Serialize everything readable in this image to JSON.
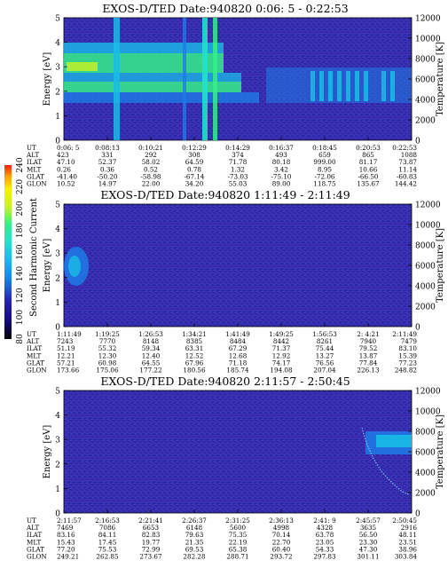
{
  "colors": {
    "background": "#2a26a8",
    "levels": [
      "#000000",
      "#140a78",
      "#2222bb",
      "#2a26a8",
      "#3b3fd0",
      "#1f7be6",
      "#1abde8",
      "#23e1c9",
      "#35f08a",
      "#7cf23c",
      "#c8f41e",
      "#f6f300",
      "#ff9a00",
      "#ff1a1a"
    ]
  },
  "colorbar": {
    "label": "Second Harmonic Current",
    "ticks": [
      "240",
      "220",
      "200",
      "180",
      "160",
      "140",
      "120",
      "100",
      "80"
    ],
    "min": 80,
    "max": 240
  },
  "chart_data": [
    {
      "type": "heatmap",
      "title": "EXOS-D/TED   Date:940820   0:06: 5 - 0:22:53",
      "ylabel": "Energy [eV]",
      "y2label": "Temperature [K]",
      "ylim": [
        0,
        5
      ],
      "y2lim": [
        0,
        12000
      ],
      "yticks": [
        "5",
        "4",
        "3",
        "2",
        "1",
        "0"
      ],
      "y2ticks": [
        "12000",
        "10000",
        "8000",
        "6000",
        "4000",
        "2000",
        "0"
      ],
      "row_labels": [
        "UT",
        "ALT",
        "ILAT",
        "MLT",
        "GLAT",
        "GLON"
      ],
      "columns": [
        [
          "0:06: 5",
          "423",
          "47.10",
          "0.26",
          "-41.40",
          "10.52"
        ],
        [
          "0:08:13",
          "331",
          "52.37",
          "0.36",
          "-50.20",
          "14.97"
        ],
        [
          "0:10:21",
          "292",
          "58.02",
          "0.52",
          "-58.98",
          "22.00"
        ],
        [
          "0:12:29",
          "308",
          "64.59",
          "0.78",
          "-67.14",
          "34.20"
        ],
        [
          "0:14:29",
          "374",
          "71.78",
          "1.32",
          "-73.03",
          "55.03"
        ],
        [
          "0:16:37",
          "493",
          "80.18",
          "3.42",
          "-75.10",
          "89.00"
        ],
        [
          "0:18:45",
          "659",
          "999.00",
          "8.95",
          "-72.06",
          "118.75"
        ],
        [
          "0:20:53",
          "865",
          "81.17",
          "10.66",
          "-66.50",
          "135.67"
        ],
        [
          "0:22:53",
          "1088",
          "73.87",
          "11.14",
          "-60.83",
          "144.42"
        ]
      ]
    },
    {
      "type": "heatmap",
      "title": "EXOS-D/TED   Date:940820   1:11:49 - 2:11:49",
      "ylabel": "Energy [eV]",
      "y2label": "Temperature [K]",
      "ylim": [
        0,
        5
      ],
      "y2lim": [
        0,
        12000
      ],
      "yticks": [
        "5",
        "4",
        "3",
        "2",
        "1",
        "0"
      ],
      "y2ticks": [
        "12000",
        "10000",
        "8000",
        "6000",
        "4000",
        "2000",
        "0"
      ],
      "row_labels": [
        "UT",
        "ALT",
        "ILAT",
        "MLT",
        "GLAT",
        "GLON"
      ],
      "columns": [
        [
          "1:11:49",
          "7243",
          "51.19",
          "12.21",
          "57.21",
          "173.66"
        ],
        [
          "1:19:25",
          "7770",
          "55.32",
          "12.30",
          "60.98",
          "175.06"
        ],
        [
          "1:26:53",
          "8148",
          "59.34",
          "12.40",
          "64.55",
          "177.22"
        ],
        [
          "1:34:21",
          "8385",
          "63.31",
          "12.52",
          "67.96",
          "180.56"
        ],
        [
          "1:41:49",
          "8484",
          "67.29",
          "12.68",
          "71.18",
          "185.74"
        ],
        [
          "1:49:25",
          "8442",
          "71.37",
          "12.92",
          "74.17",
          "194.08"
        ],
        [
          "1:56:53",
          "8261",
          "75.44",
          "13.27",
          "76.56",
          "207.04"
        ],
        [
          "2: 4:21",
          "7940",
          "79.52",
          "13.87",
          "77.84",
          "226.13"
        ],
        [
          "2:11:49",
          "7479",
          "83.10",
          "15.39",
          "77.23",
          "248.82"
        ]
      ]
    },
    {
      "type": "heatmap",
      "title": "EXOS-D/TED   Date:940820   2:11:57 - 2:50:45",
      "ylabel": "Energy [eV]",
      "y2label": "Temperature [K]",
      "ylim": [
        0,
        5
      ],
      "y2lim": [
        0,
        12000
      ],
      "yticks": [
        "5",
        "4",
        "3",
        "2",
        "1",
        "0"
      ],
      "y2ticks": [
        "12000",
        "10000",
        "8000",
        "6000",
        "4000",
        "2000",
        "0"
      ],
      "row_labels": [
        "UT",
        "ALT",
        "ILAT",
        "MLT",
        "GLAT",
        "GLON"
      ],
      "columns": [
        [
          "2:11:57",
          "7469",
          "83.16",
          "15.43",
          "77.20",
          "249.21"
        ],
        [
          "2:16:53",
          "7086",
          "84.11",
          "17.45",
          "75.53",
          "262.85"
        ],
        [
          "2:21:41",
          "6653",
          "82.83",
          "19.77",
          "72.99",
          "273.67"
        ],
        [
          "2:26:37",
          "6148",
          "79.63",
          "21.35",
          "69.53",
          "282.28"
        ],
        [
          "2:31:25",
          "5600",
          "75.35",
          "22.19",
          "65.38",
          "288.71"
        ],
        [
          "2:36:13",
          "4998",
          "70.14",
          "22.70",
          "60.40",
          "293.72"
        ],
        [
          "2:41: 9",
          "4328",
          "63.78",
          "23.05",
          "54.33",
          "297.83"
        ],
        [
          "2:45:57",
          "3635",
          "56.50",
          "23.30",
          "47.30",
          "301.11"
        ],
        [
          "2:50:45",
          "2916",
          "48.11",
          "23.51",
          "38.96",
          "303.84"
        ]
      ]
    }
  ]
}
